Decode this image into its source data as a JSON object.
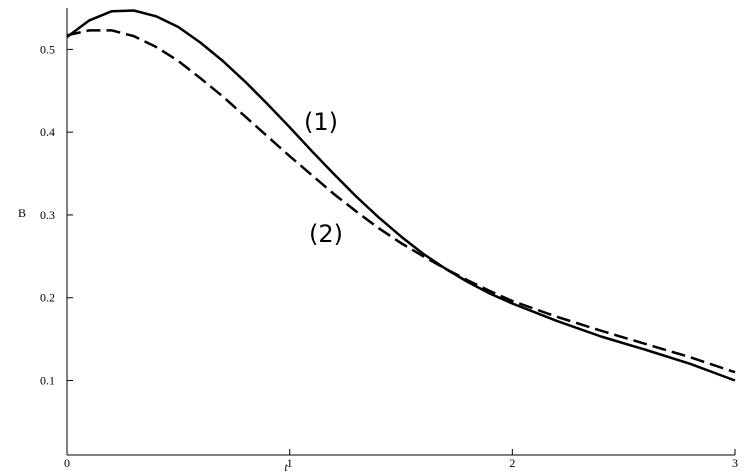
{
  "chart_data": {
    "type": "line",
    "x_label": "t",
    "y_label": "B",
    "x": [
      0,
      0.1,
      0.2,
      0.3,
      0.4,
      0.5,
      0.6,
      0.7,
      0.8,
      0.9,
      1.0,
      1.1,
      1.2,
      1.3,
      1.4,
      1.5,
      1.6,
      1.7,
      1.8,
      1.9,
      2.0,
      2.2,
      2.4,
      2.6,
      2.8,
      3.0
    ],
    "series": [
      {
        "color": "#000000",
        "dash": "solid",
        "values": [
          0.515,
          0.535,
          0.546,
          0.547,
          0.54,
          0.527,
          0.508,
          0.486,
          0.461,
          0.434,
          0.406,
          0.377,
          0.349,
          0.322,
          0.297,
          0.274,
          0.253,
          0.235,
          0.219,
          0.205,
          0.193,
          0.172,
          0.153,
          0.137,
          0.12,
          0.1
        ]
      },
      {
        "color": "#000000",
        "dash": "dashed",
        "values": [
          0.517,
          0.523,
          0.523,
          0.516,
          0.503,
          0.486,
          0.465,
          0.443,
          0.419,
          0.395,
          0.371,
          0.348,
          0.325,
          0.304,
          0.284,
          0.266,
          0.25,
          0.235,
          0.221,
          0.208,
          0.196,
          0.177,
          0.16,
          0.144,
          0.128,
          0.11
        ]
      }
    ],
    "annotations": [
      "(1)",
      "(2)"
    ],
    "xlim": [
      0,
      3
    ],
    "ylim": [
      0.01,
      0.55
    ],
    "xticks": [
      0,
      1,
      2,
      3
    ],
    "yticks": [
      0.1,
      0.2,
      0.3,
      0.4,
      0.5
    ],
    "grid": false
  }
}
